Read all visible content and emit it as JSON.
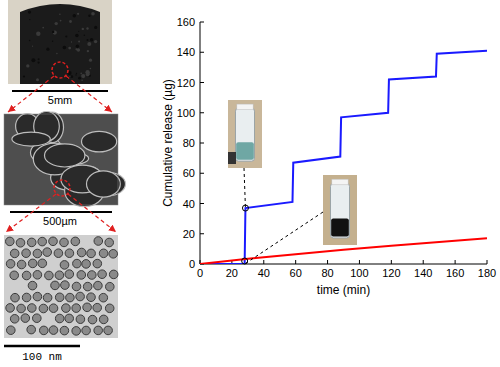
{
  "chart_data": {
    "type": "line",
    "xlabel": "time (min)",
    "ylabel": "Cumulative release (µg)",
    "xlim": [
      0,
      180
    ],
    "ylim": [
      0,
      160
    ],
    "xticks": [
      0,
      20,
      40,
      60,
      80,
      100,
      120,
      140,
      160,
      180
    ],
    "yticks": [
      0,
      20,
      40,
      60,
      80,
      100,
      120,
      140,
      160
    ],
    "grid": false,
    "series": [
      {
        "color": "#1a1aff",
        "x": [
          0,
          28,
          28.5,
          58,
          58.5,
          88,
          88.5,
          118,
          118.5,
          148,
          148.5,
          180
        ],
        "values": [
          0,
          0,
          37,
          41,
          67,
          71,
          97,
          100,
          122,
          124,
          139,
          141
        ]
      },
      {
        "color": "#ff0000",
        "x": [
          0,
          30,
          60,
          90,
          120,
          150,
          180
        ],
        "values": [
          0,
          3.5,
          6.5,
          9.5,
          12,
          14.5,
          17
        ]
      }
    ]
  },
  "scale_bars": [
    "5mm",
    "500µm",
    "100 nm"
  ]
}
